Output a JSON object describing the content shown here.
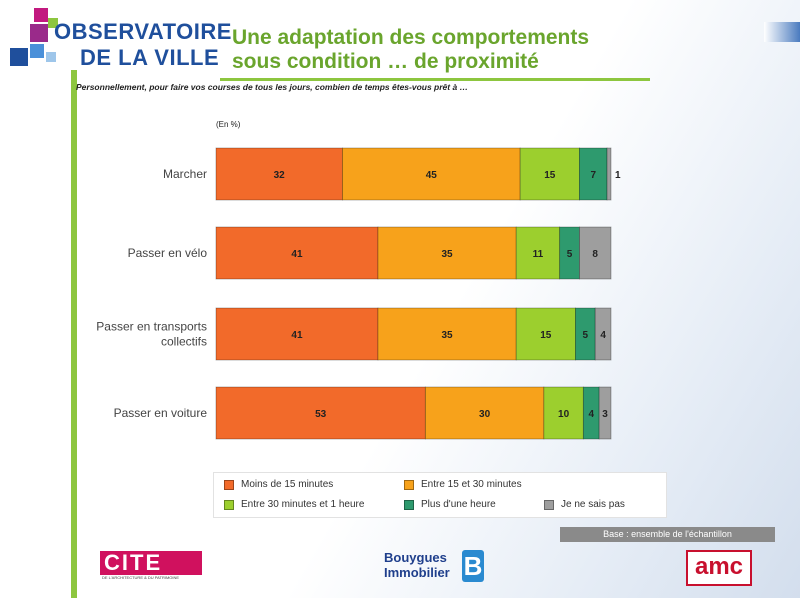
{
  "header": {
    "brand_line1": "OBSERVATOIRE",
    "brand_line2": "DE LA VILLE",
    "title_line1": "Une adaptation des comportements",
    "title_line2": "sous condition … de proximité",
    "question": "Personnellement, pour faire vos courses de tous les jours, combien de temps êtes-vous prêt à …"
  },
  "chart_data": {
    "type": "bar",
    "orientation": "horizontal",
    "stacked": true,
    "unit_label": "(En %)",
    "categories": [
      "Marcher",
      "Passer en vélo",
      "Passer en transports collectifs",
      "Passer en voiture"
    ],
    "series": [
      {
        "name": "Moins de 15 minutes",
        "color": "#f26a2a",
        "values": [
          32,
          41,
          41,
          53
        ]
      },
      {
        "name": "Entre 15 et 30 minutes",
        "color": "#f7a21b",
        "values": [
          45,
          35,
          35,
          30
        ]
      },
      {
        "name": "Entre 30 minutes et 1 heure",
        "color": "#9ccf2e",
        "values": [
          15,
          11,
          15,
          10
        ]
      },
      {
        "name": "Plus d'une heure",
        "color": "#2e9a6e",
        "values": [
          7,
          5,
          5,
          4
        ]
      },
      {
        "name": "Je ne sais pas",
        "color": "#9e9e9e",
        "values": [
          1,
          8,
          4,
          3
        ]
      }
    ],
    "xlim": [
      0,
      100
    ],
    "grid": false,
    "legend": "bottom"
  },
  "footer": {
    "base_note": "Base : ensemble de l'échantillon",
    "logo_cite": "CITE",
    "logo_cite_small": "DE L'ARCHITECTURE & DU PATRIMOINE",
    "logo_bouygues_1": "Bouygues",
    "logo_bouygues_2": "Immobilier",
    "logo_bouygues_mark": "B",
    "logo_amc": "amc"
  }
}
